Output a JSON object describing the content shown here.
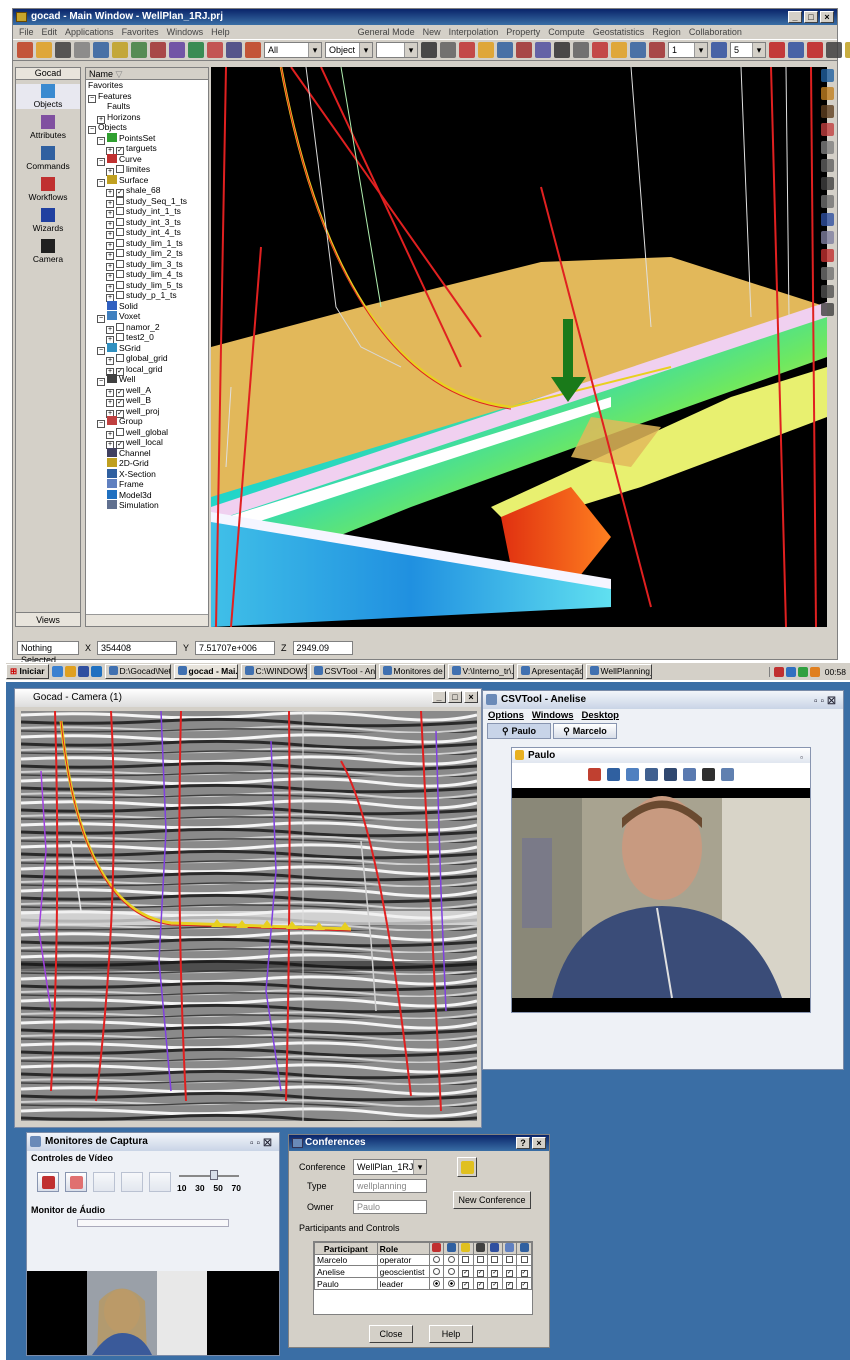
{
  "main_window": {
    "title": "gocad - Main Window - WellPlan_1RJ.prj",
    "menu": [
      "File",
      "Edit",
      "Applications",
      "Favorites",
      "Windows",
      "Help",
      "General Mode",
      "New",
      "Interpolation",
      "Property",
      "Compute",
      "Geostatistics",
      "Region",
      "Collaboration"
    ],
    "toolbar": {
      "filter_value": "All",
      "object_value": "Object",
      "step_value": "1",
      "zoom_value": "5"
    },
    "left_nav": {
      "header": "Gocad",
      "items": [
        "Objects",
        "Attributes",
        "Commands",
        "Workflows",
        "Wizards",
        "Camera"
      ],
      "footer": "Views"
    },
    "tree": {
      "header": "Name",
      "rows": [
        {
          "label": "Favorites",
          "indent": 0,
          "box": ""
        },
        {
          "label": "Features",
          "indent": 0,
          "box": "-"
        },
        {
          "label": "Faults",
          "indent": 1,
          "box": ""
        },
        {
          "label": "Horizons",
          "indent": 1,
          "box": "+"
        },
        {
          "label": "Objects",
          "indent": 0,
          "box": "-"
        },
        {
          "label": "PointsSet",
          "indent": 1,
          "box": "-",
          "icon": "pointsset-icon"
        },
        {
          "label": "targuets",
          "indent": 2,
          "box": "+",
          "check": true
        },
        {
          "label": "Curve",
          "indent": 1,
          "box": "-",
          "icon": "curve-icon"
        },
        {
          "label": "limites",
          "indent": 2,
          "box": "+",
          "check": false
        },
        {
          "label": "Surface",
          "indent": 1,
          "box": "-",
          "icon": "surface-icon"
        },
        {
          "label": "shale_68",
          "indent": 2,
          "box": "+",
          "check": true
        },
        {
          "label": "study_Seq_1_ts",
          "indent": 2,
          "box": "+",
          "check": false
        },
        {
          "label": "study_int_1_ts",
          "indent": 2,
          "box": "+",
          "check": false
        },
        {
          "label": "study_int_3_ts",
          "indent": 2,
          "box": "+",
          "check": false
        },
        {
          "label": "study_int_4_ts",
          "indent": 2,
          "box": "+",
          "check": false
        },
        {
          "label": "study_lim_1_ts",
          "indent": 2,
          "box": "+",
          "check": false
        },
        {
          "label": "study_lim_2_ts",
          "indent": 2,
          "box": "+",
          "check": false
        },
        {
          "label": "study_lim_3_ts",
          "indent": 2,
          "box": "+",
          "check": false
        },
        {
          "label": "study_lim_4_ts",
          "indent": 2,
          "box": "+",
          "check": false
        },
        {
          "label": "study_lim_5_ts",
          "indent": 2,
          "box": "+",
          "check": false
        },
        {
          "label": "study_p_1_ts",
          "indent": 2,
          "box": "+",
          "check": false
        },
        {
          "label": "Solid",
          "indent": 1,
          "box": "",
          "icon": "solid-icon"
        },
        {
          "label": "Voxet",
          "indent": 1,
          "box": "-",
          "icon": "voxet-icon"
        },
        {
          "label": "namor_2",
          "indent": 2,
          "box": "+",
          "check": false
        },
        {
          "label": "test2_0",
          "indent": 2,
          "box": "+",
          "check": false
        },
        {
          "label": "SGrid",
          "indent": 1,
          "box": "-",
          "icon": "sgrid-icon"
        },
        {
          "label": "global_grid",
          "indent": 2,
          "box": "+",
          "check": false
        },
        {
          "label": "local_grid",
          "indent": 2,
          "box": "+",
          "check": true
        },
        {
          "label": "Well",
          "indent": 1,
          "box": "-",
          "icon": "well-icon"
        },
        {
          "label": "well_A",
          "indent": 2,
          "box": "+",
          "check": true
        },
        {
          "label": "well_B",
          "indent": 2,
          "box": "+",
          "check": true
        },
        {
          "label": "well_proj",
          "indent": 2,
          "box": "+",
          "check": true
        },
        {
          "label": "Group",
          "indent": 1,
          "box": "-",
          "icon": "group-icon"
        },
        {
          "label": "well_global",
          "indent": 2,
          "box": "+",
          "check": false
        },
        {
          "label": "well_local",
          "indent": 2,
          "box": "+",
          "check": true
        },
        {
          "label": "Channel",
          "indent": 1,
          "box": "",
          "icon": "channel-icon"
        },
        {
          "label": "2D-Grid",
          "indent": 1,
          "box": "",
          "icon": "grid2d-icon"
        },
        {
          "label": "X-Section",
          "indent": 1,
          "box": "",
          "icon": "xsection-icon"
        },
        {
          "label": "Frame",
          "indent": 1,
          "box": "",
          "icon": "frame-icon"
        },
        {
          "label": "Model3d",
          "indent": 1,
          "box": "",
          "icon": "model3d-icon"
        },
        {
          "label": "Simulation",
          "indent": 1,
          "box": "",
          "icon": "simulation-icon"
        }
      ]
    },
    "status": {
      "selection": "Nothing Selected",
      "x_label": "X",
      "x_value": "354408",
      "y_label": "Y",
      "y_value": "7.51707e+006",
      "z_label": "Z",
      "z_value": "2949.09"
    }
  },
  "taskbar": {
    "start": "Iniciar",
    "tasks": [
      "D:\\Gocad\\Net...",
      "gocad - Mai...",
      "C:\\WINDOWS...",
      "CSVTool - Ane...",
      "Monitores de ...",
      "V:\\Interno_tr\\...",
      "Apresentação1",
      "WellPlanning_..."
    ],
    "clock": "00:58"
  },
  "camera_window": {
    "title": "Gocad - Camera (1)"
  },
  "csvtool": {
    "title": "CSVTool - Anelise",
    "menu": [
      "Options",
      "Windows",
      "Desktop"
    ],
    "tabs": [
      "Paulo",
      "Marcelo"
    ],
    "video_title": "Paulo"
  },
  "capture_monitor": {
    "title": "Monitores de Captura",
    "video_section": "Controles de Vídeo",
    "slider_ticks": [
      "10",
      "30",
      "50",
      "70"
    ],
    "slider_level": 0.6,
    "audio_section": "Monitor de Áudio"
  },
  "conferences": {
    "title": "Conferences",
    "help_btn": "?",
    "close_btn": "×",
    "conference_label": "Conference",
    "conference_value": "WellPlan_1RJ",
    "type_label": "Type",
    "type_value": "wellplanning",
    "owner_label": "Owner",
    "owner_value": "Paulo",
    "new_conference": "New Conference",
    "participants_label": "Participants and Controls",
    "col_participant": "Participant",
    "col_role": "Role",
    "participants": [
      {
        "name": "Marcelo",
        "role": "operator",
        "radios": [
          false,
          false
        ],
        "checks": [
          false,
          false,
          false,
          false,
          false
        ]
      },
      {
        "name": "Anelise",
        "role": "geoscientist",
        "radios": [
          false,
          false
        ],
        "checks": [
          true,
          true,
          true,
          true,
          true
        ]
      },
      {
        "name": "Paulo",
        "role": "leader",
        "radios": [
          true,
          true
        ],
        "checks": [
          true,
          true,
          true,
          true,
          true
        ]
      }
    ],
    "close_label": "Close",
    "help_label": "Help"
  }
}
